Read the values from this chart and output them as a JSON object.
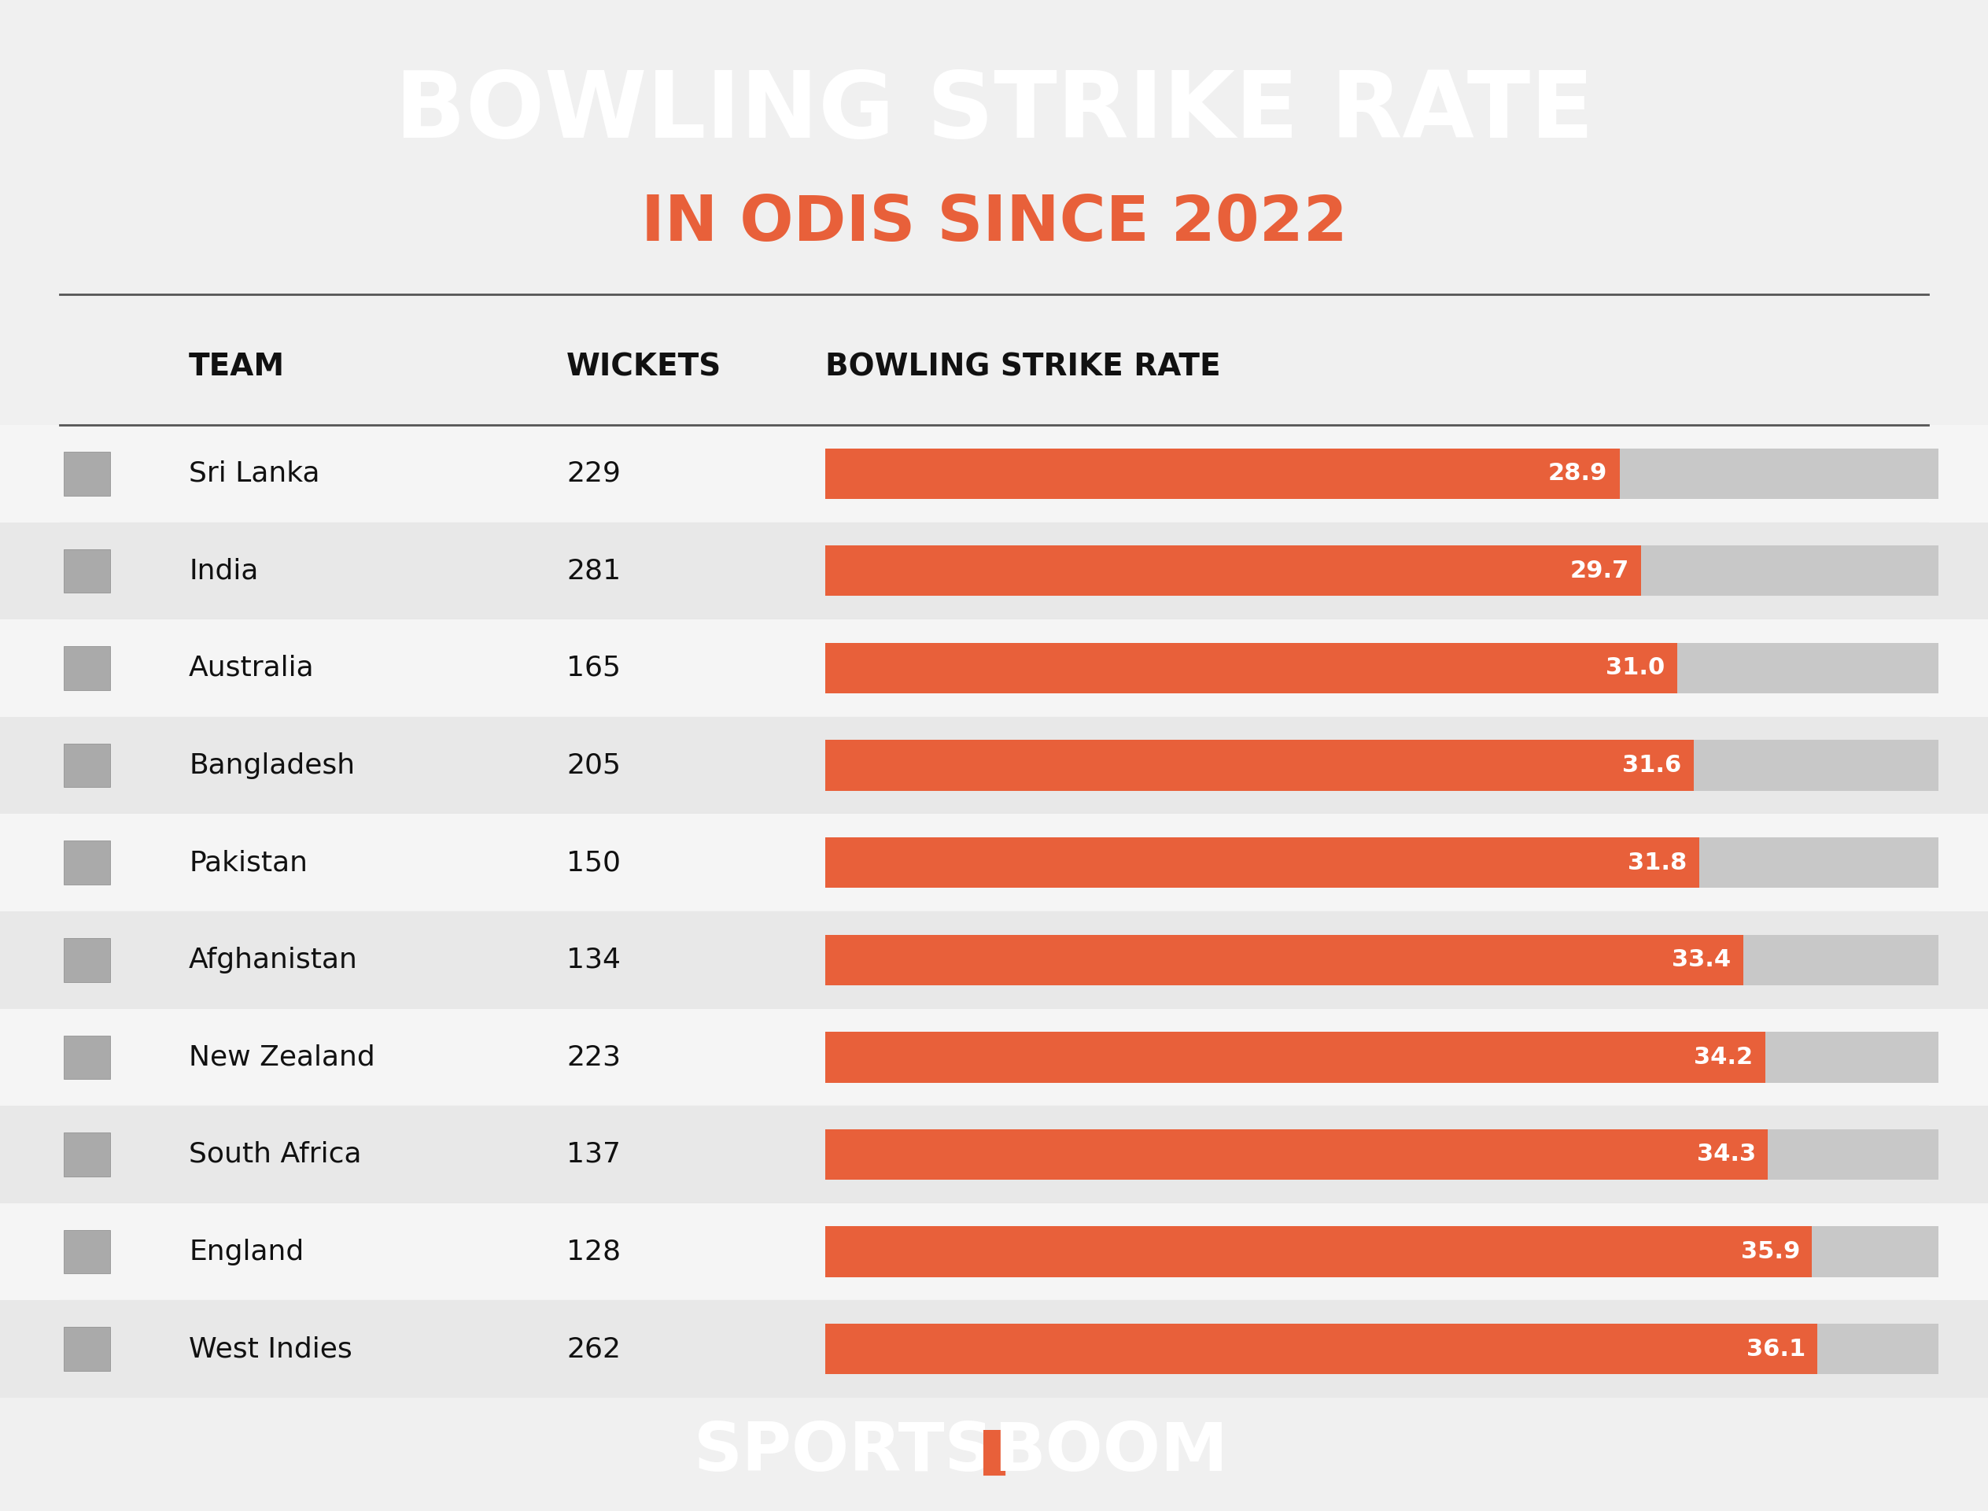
{
  "title_line1": "BOWLING STRIKE RATE",
  "title_line2": "IN ODIS SINCE 2022",
  "header_bg_color": "#0e3347",
  "header_text_color": "#ffffff",
  "subtitle_color": "#e8603a",
  "table_bg_color": "#f0f0f0",
  "bar_color": "#e8603a",
  "bar_bg_color": "#c8c8c8",
  "footer_bg_color": "#0e3347",
  "col_header_team": "TEAM",
  "col_header_wickets": "WICKETS",
  "col_header_bsr": "BOWLING STRIKE RATE",
  "teams": [
    "Sri Lanka",
    "India",
    "Australia",
    "Bangladesh",
    "Pakistan",
    "Afghanistan",
    "New Zealand",
    "South Africa",
    "England",
    "West Indies"
  ],
  "wickets": [
    229,
    281,
    165,
    205,
    150,
    134,
    223,
    137,
    128,
    262
  ],
  "strike_rates": [
    28.9,
    29.7,
    31.0,
    31.6,
    31.8,
    33.4,
    34.2,
    34.3,
    35.9,
    36.1
  ],
  "max_bar_value": 40.5,
  "row_bg_even": "#f5f5f5",
  "row_bg_odd": "#e8e8e8",
  "separator_color": "#cccccc",
  "header_line_color": "#555555"
}
